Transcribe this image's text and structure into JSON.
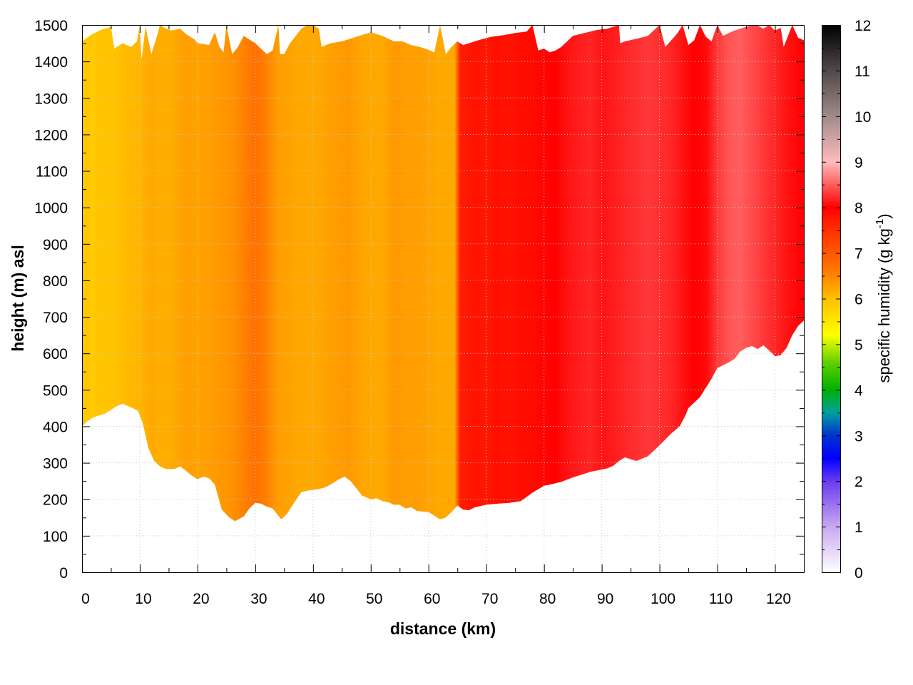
{
  "chart_data": {
    "type": "heatmap",
    "xlabel": "distance (km)",
    "ylabel": "height (m) asl",
    "xlim": [
      0,
      125
    ],
    "ylim": [
      0,
      1500
    ],
    "x_ticks": [
      "0",
      "10",
      "20",
      "30",
      "40",
      "50",
      "60",
      "70",
      "80",
      "90",
      "100",
      "110",
      "120"
    ],
    "y_ticks": [
      "0",
      "100",
      "200",
      "300",
      "400",
      "500",
      "600",
      "700",
      "800",
      "900",
      "1000",
      "1100",
      "1200",
      "1300",
      "1400",
      "1500"
    ],
    "grid": true,
    "colorbar": {
      "label_main": "specific humidity (g kg",
      "label_sup": "-1",
      "label_end": ")",
      "range": [
        0,
        12
      ],
      "ticks": [
        "0",
        "1",
        "2",
        "3",
        "4",
        "5",
        "6",
        "7",
        "8",
        "9",
        "10",
        "11",
        "12"
      ],
      "colors": [
        {
          "value": 0,
          "color": "#ffffff"
        },
        {
          "value": 1,
          "color": "#c8a8f0"
        },
        {
          "value": 2,
          "color": "#6a3af0"
        },
        {
          "value": 2.5,
          "color": "#0000ff"
        },
        {
          "value": 3,
          "color": "#0033cc"
        },
        {
          "value": 3.5,
          "color": "#00a0a0"
        },
        {
          "value": 4,
          "color": "#00b000"
        },
        {
          "value": 4.6,
          "color": "#60d000"
        },
        {
          "value": 5.2,
          "color": "#ffff00"
        },
        {
          "value": 6,
          "color": "#ffc000"
        },
        {
          "value": 6.7,
          "color": "#ff7000"
        },
        {
          "value": 7.5,
          "color": "#ff3000"
        },
        {
          "value": 8,
          "color": "#ff0000"
        },
        {
          "value": 9,
          "color": "#ffbcbc"
        },
        {
          "value": 10,
          "color": "#a08a8a"
        },
        {
          "value": 11,
          "color": "#504848"
        },
        {
          "value": 12,
          "color": "#000000"
        }
      ]
    },
    "terrain_km_m": [
      [
        0,
        400
      ],
      [
        1,
        415
      ],
      [
        2,
        425
      ],
      [
        3,
        430
      ],
      [
        4,
        435
      ],
      [
        5,
        445
      ],
      [
        6,
        455
      ],
      [
        7,
        462
      ],
      [
        8,
        455
      ],
      [
        9,
        448
      ],
      [
        9.7,
        442
      ],
      [
        10.5,
        410
      ],
      [
        11.5,
        340
      ],
      [
        12.5,
        305
      ],
      [
        13.5,
        290
      ],
      [
        14.5,
        283
      ],
      [
        16,
        283
      ],
      [
        17,
        290
      ],
      [
        18,
        278
      ],
      [
        19,
        265
      ],
      [
        20,
        255
      ],
      [
        21,
        262
      ],
      [
        22,
        258
      ],
      [
        23,
        240
      ],
      [
        24.2,
        172
      ],
      [
        25.5,
        150
      ],
      [
        26.5,
        140
      ],
      [
        28,
        153
      ],
      [
        29,
        175
      ],
      [
        30,
        190
      ],
      [
        31,
        188
      ],
      [
        32,
        180
      ],
      [
        33,
        175
      ],
      [
        34.5,
        145
      ],
      [
        35.5,
        160
      ],
      [
        36.5,
        185
      ],
      [
        38,
        220
      ],
      [
        39.5,
        225
      ],
      [
        41,
        228
      ],
      [
        42,
        232
      ],
      [
        43,
        240
      ],
      [
        44.5,
        255
      ],
      [
        45.5,
        262
      ],
      [
        46.5,
        250
      ],
      [
        47.5,
        230
      ],
      [
        48.5,
        210
      ],
      [
        50,
        200
      ],
      [
        51,
        203
      ],
      [
        52,
        195
      ],
      [
        53,
        192
      ],
      [
        54,
        185
      ],
      [
        55,
        185
      ],
      [
        56,
        175
      ],
      [
        57,
        178
      ],
      [
        58,
        168
      ],
      [
        60,
        165
      ],
      [
        61,
        155
      ],
      [
        62,
        145
      ],
      [
        63,
        150
      ],
      [
        64,
        165
      ],
      [
        65,
        183
      ],
      [
        66,
        172
      ],
      [
        67,
        170
      ],
      [
        68,
        178
      ],
      [
        70,
        185
      ],
      [
        72,
        188
      ],
      [
        74,
        190
      ],
      [
        76,
        195
      ],
      [
        78,
        218
      ],
      [
        80,
        237
      ],
      [
        81,
        240
      ],
      [
        83,
        248
      ],
      [
        85,
        260
      ],
      [
        88,
        275
      ],
      [
        91,
        285
      ],
      [
        92,
        292
      ],
      [
        93,
        305
      ],
      [
        94,
        315
      ],
      [
        95,
        310
      ],
      [
        96,
        305
      ],
      [
        98,
        318
      ],
      [
        100,
        348
      ],
      [
        102,
        380
      ],
      [
        103.5,
        400
      ],
      [
        104.5,
        430
      ],
      [
        105,
        450
      ],
      [
        107,
        480
      ],
      [
        109,
        530
      ],
      [
        110,
        560
      ],
      [
        112,
        575
      ],
      [
        113,
        585
      ],
      [
        114,
        605
      ],
      [
        115,
        615
      ],
      [
        116,
        620
      ],
      [
        117,
        612
      ],
      [
        118,
        622
      ],
      [
        119,
        608
      ],
      [
        120,
        592
      ],
      [
        121,
        595
      ],
      [
        122,
        615
      ],
      [
        123,
        650
      ],
      [
        124,
        675
      ],
      [
        125,
        690
      ]
    ],
    "top_envelope_km_m": [
      [
        0,
        1455
      ],
      [
        1.5,
        1472
      ],
      [
        3,
        1485
      ],
      [
        4,
        1490
      ],
      [
        5,
        1495
      ],
      [
        5.6,
        1435
      ],
      [
        7,
        1450
      ],
      [
        8.5,
        1440
      ],
      [
        9.5,
        1455
      ],
      [
        10,
        1500
      ],
      [
        10.3,
        1405
      ],
      [
        11,
        1495
      ],
      [
        12,
        1420
      ],
      [
        13,
        1470
      ],
      [
        13.5,
        1500
      ],
      [
        14.5,
        1490
      ],
      [
        15.5,
        1485
      ],
      [
        17,
        1490
      ],
      [
        18,
        1475
      ],
      [
        19.5,
        1460
      ],
      [
        20,
        1450
      ],
      [
        21,
        1448
      ],
      [
        22,
        1445
      ],
      [
        23,
        1480
      ],
      [
        23.8,
        1440
      ],
      [
        24.5,
        1425
      ],
      [
        25,
        1500
      ],
      [
        26,
        1420
      ],
      [
        27,
        1440
      ],
      [
        28,
        1470
      ],
      [
        29,
        1460
      ],
      [
        30,
        1450
      ],
      [
        32,
        1420
      ],
      [
        33,
        1430
      ],
      [
        34,
        1500
      ],
      [
        34.3,
        1420
      ],
      [
        35,
        1420
      ],
      [
        36,
        1450
      ],
      [
        38,
        1490
      ],
      [
        39,
        1500
      ],
      [
        40,
        1500
      ],
      [
        41,
        1490
      ],
      [
        41.5,
        1440
      ],
      [
        43,
        1450
      ],
      [
        45,
        1455
      ],
      [
        47,
        1465
      ],
      [
        48,
        1470
      ],
      [
        50,
        1480
      ],
      [
        52,
        1470
      ],
      [
        54,
        1455
      ],
      [
        55.5,
        1455
      ],
      [
        57,
        1445
      ],
      [
        58.5,
        1440
      ],
      [
        60,
        1432
      ],
      [
        61,
        1425
      ],
      [
        62,
        1500
      ],
      [
        63,
        1420
      ],
      [
        64,
        1440
      ],
      [
        65,
        1455
      ],
      [
        66,
        1445
      ],
      [
        67,
        1450
      ],
      [
        69,
        1460
      ],
      [
        71,
        1468
      ],
      [
        73,
        1472
      ],
      [
        75,
        1478
      ],
      [
        77,
        1482
      ],
      [
        78,
        1500
      ],
      [
        79,
        1430
      ],
      [
        80,
        1435
      ],
      [
        81,
        1425
      ],
      [
        82,
        1430
      ],
      [
        83,
        1440
      ],
      [
        84,
        1455
      ],
      [
        85,
        1470
      ],
      [
        87,
        1478
      ],
      [
        89,
        1486
      ],
      [
        91,
        1490
      ],
      [
        93,
        1500
      ],
      [
        93.2,
        1450
      ],
      [
        94,
        1455
      ],
      [
        96,
        1462
      ],
      [
        98,
        1470
      ],
      [
        100,
        1500
      ],
      [
        101,
        1440
      ],
      [
        103,
        1475
      ],
      [
        104,
        1500
      ],
      [
        105,
        1445
      ],
      [
        106,
        1458
      ],
      [
        107,
        1500
      ],
      [
        108,
        1468
      ],
      [
        109,
        1455
      ],
      [
        110,
        1500
      ],
      [
        111,
        1470
      ],
      [
        112,
        1478
      ],
      [
        113,
        1485
      ],
      [
        114,
        1490
      ],
      [
        115,
        1495
      ],
      [
        116,
        1500
      ],
      [
        117,
        1498
      ],
      [
        118,
        1490
      ],
      [
        119,
        1500
      ],
      [
        120,
        1485
      ],
      [
        121,
        1492
      ],
      [
        121.5,
        1440
      ],
      [
        123,
        1500
      ],
      [
        124,
        1465
      ],
      [
        125,
        1458
      ]
    ],
    "humidity_columns_km_gkg": [
      [
        0,
        5.9
      ],
      [
        2,
        5.9
      ],
      [
        4,
        5.95
      ],
      [
        6,
        6.0
      ],
      [
        8,
        6.05
      ],
      [
        10,
        6.1
      ],
      [
        12,
        6.2
      ],
      [
        14,
        6.15
      ],
      [
        16,
        6.2
      ],
      [
        18,
        6.3
      ],
      [
        20,
        6.25
      ],
      [
        22,
        6.3
      ],
      [
        24,
        6.35
      ],
      [
        26,
        6.4
      ],
      [
        28,
        6.55
      ],
      [
        30,
        6.7
      ],
      [
        32,
        6.55
      ],
      [
        34,
        6.3
      ],
      [
        36,
        6.25
      ],
      [
        38,
        6.2
      ],
      [
        40,
        6.2
      ],
      [
        42,
        6.25
      ],
      [
        44,
        6.3
      ],
      [
        46,
        6.35
      ],
      [
        48,
        6.25
      ],
      [
        50,
        6.2
      ],
      [
        52,
        6.2
      ],
      [
        54,
        6.35
      ],
      [
        56,
        6.3
      ],
      [
        58,
        6.3
      ],
      [
        60,
        6.25
      ],
      [
        62,
        6.2
      ],
      [
        64.5,
        6.2
      ],
      [
        65.5,
        7.7
      ],
      [
        68,
        7.8
      ],
      [
        70,
        7.75
      ],
      [
        72,
        7.85
      ],
      [
        74,
        7.8
      ],
      [
        76,
        7.85
      ],
      [
        78,
        7.9
      ],
      [
        80,
        7.95
      ],
      [
        82,
        8.0
      ],
      [
        84,
        8.1
      ],
      [
        86,
        8.15
      ],
      [
        88,
        8.2
      ],
      [
        90,
        8.1
      ],
      [
        92,
        8.15
      ],
      [
        94,
        8.2
      ],
      [
        96,
        8.25
      ],
      [
        98,
        8.3
      ],
      [
        100,
        8.25
      ],
      [
        102,
        8.2
      ],
      [
        104,
        8.1
      ],
      [
        106,
        8.0
      ],
      [
        108,
        8.05
      ],
      [
        110,
        8.3
      ],
      [
        112,
        8.45
      ],
      [
        114,
        8.5
      ],
      [
        116,
        8.4
      ],
      [
        118,
        8.3
      ],
      [
        120,
        8.2
      ],
      [
        122,
        8.1
      ],
      [
        125,
        8.0
      ]
    ]
  }
}
